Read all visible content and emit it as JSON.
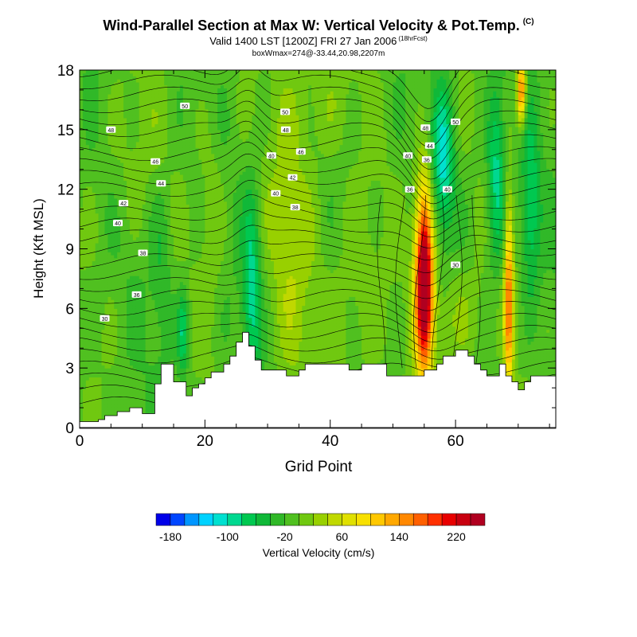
{
  "title": {
    "main": "Wind-Parallel Section at Max W: Vertical Velocity & Pot.Temp.",
    "copyright": "(C)",
    "valid": "Valid 1400 LST [1200Z] FRI 27 Jan 2006",
    "fcst": "(18hrFcst)",
    "box": "boxWmax=274@-33.44,20.98,2207m"
  },
  "chart_data": {
    "type": "heatmap",
    "title": "Wind-Parallel Section at Max W: Vertical Velocity & Pot.Temp.",
    "xlabel": "Grid Point",
    "ylabel": "Height (Kft MSL)",
    "xlim": [
      0,
      76
    ],
    "ylim": [
      0,
      18
    ],
    "xticks": [
      0,
      20,
      40,
      60
    ],
    "yticks": [
      0,
      3,
      6,
      9,
      12,
      15,
      18
    ],
    "colorbar": {
      "label": "Vertical Velocity (cm/s)",
      "tick_labels": [
        "-180",
        "-100",
        "-20",
        "60",
        "140",
        "220"
      ],
      "tick_values": [
        -180,
        -100,
        -20,
        60,
        140,
        220
      ],
      "bins": [
        -200,
        -180,
        -160,
        -140,
        -120,
        -100,
        -80,
        -60,
        -40,
        -20,
        0,
        20,
        40,
        60,
        80,
        100,
        120,
        140,
        160,
        180,
        200,
        220,
        240,
        260
      ],
      "colors": [
        "#0000e8",
        "#0046ff",
        "#0096ff",
        "#00d2ff",
        "#00e0d0",
        "#00d890",
        "#00c850",
        "#10b838",
        "#30b828",
        "#50c020",
        "#70c810",
        "#98d000",
        "#c0d800",
        "#e0e000",
        "#f8e000",
        "#ffc800",
        "#ffa800",
        "#ff8800",
        "#ff6000",
        "#ff3000",
        "#e80000",
        "#c80010",
        "#b00020"
      ]
    },
    "terrain": [
      [
        0,
        0.3
      ],
      [
        3,
        0.3
      ],
      [
        3,
        0.4
      ],
      [
        4,
        0.4
      ],
      [
        4,
        0.6
      ],
      [
        6,
        0.6
      ],
      [
        6,
        0.8
      ],
      [
        8,
        0.8
      ],
      [
        8,
        1.0
      ],
      [
        10,
        1.0
      ],
      [
        10,
        0.7
      ],
      [
        12,
        0.7
      ],
      [
        12,
        2.2
      ],
      [
        13,
        2.2
      ],
      [
        13,
        3.2
      ],
      [
        15,
        3.2
      ],
      [
        15,
        2.3
      ],
      [
        17,
        2.3
      ],
      [
        17,
        1.6
      ],
      [
        18,
        1.6
      ],
      [
        18,
        2.0
      ],
      [
        19,
        2.0
      ],
      [
        19,
        2.2
      ],
      [
        20,
        2.2
      ],
      [
        20,
        2.5
      ],
      [
        21,
        2.5
      ],
      [
        21,
        2.8
      ],
      [
        23,
        2.8
      ],
      [
        23,
        3.2
      ],
      [
        24,
        3.2
      ],
      [
        24,
        3.6
      ],
      [
        25,
        3.6
      ],
      [
        25,
        4.3
      ],
      [
        26,
        4.3
      ],
      [
        26,
        4.8
      ],
      [
        27,
        4.8
      ],
      [
        27,
        4.1
      ],
      [
        28,
        4.1
      ],
      [
        28,
        3.4
      ],
      [
        29,
        3.4
      ],
      [
        29,
        2.9
      ],
      [
        33,
        2.9
      ],
      [
        33,
        2.6
      ],
      [
        35,
        2.6
      ],
      [
        35,
        2.9
      ],
      [
        36,
        2.9
      ],
      [
        36,
        3.2
      ],
      [
        43,
        3.2
      ],
      [
        43,
        2.9
      ],
      [
        45,
        2.9
      ],
      [
        45,
        3.2
      ],
      [
        49,
        3.2
      ],
      [
        49,
        2.6
      ],
      [
        55,
        2.6
      ],
      [
        55,
        2.9
      ],
      [
        57,
        2.9
      ],
      [
        57,
        3.2
      ],
      [
        58,
        3.2
      ],
      [
        58,
        3.6
      ],
      [
        60,
        3.6
      ],
      [
        60,
        3.9
      ],
      [
        62,
        3.9
      ],
      [
        62,
        3.6
      ],
      [
        63,
        3.6
      ],
      [
        63,
        3.2
      ],
      [
        64,
        3.2
      ],
      [
        64,
        2.9
      ],
      [
        65,
        2.9
      ],
      [
        65,
        2.6
      ],
      [
        67,
        2.6
      ],
      [
        67,
        3.2
      ],
      [
        68,
        3.2
      ],
      [
        68,
        2.6
      ],
      [
        69,
        2.6
      ],
      [
        69,
        2.3
      ],
      [
        70,
        2.3
      ],
      [
        70,
        1.9
      ],
      [
        71,
        1.9
      ],
      [
        71,
        2.3
      ],
      [
        72,
        2.3
      ],
      [
        72,
        2.6
      ],
      [
        76,
        2.6
      ],
      [
        76,
        0
      ]
    ],
    "w_features": [
      {
        "x": 55,
        "y": 7.5,
        "sx": 1.0,
        "sy": 3.3,
        "w": 300
      },
      {
        "x": 68.5,
        "y": 6.5,
        "sx": 0.5,
        "sy": 3.5,
        "w": 160
      },
      {
        "x": 70.5,
        "y": 17.0,
        "sx": 0.5,
        "sy": 1.2,
        "w": 180
      },
      {
        "x": 58,
        "y": 13.5,
        "sx": 1.2,
        "sy": 2.5,
        "w": -95
      },
      {
        "x": 66.5,
        "y": 12.5,
        "sx": 1.0,
        "sy": 3.2,
        "w": -85
      },
      {
        "x": 72,
        "y": 11.0,
        "sx": 1.0,
        "sy": 3.0,
        "w": -70
      },
      {
        "x": 27.5,
        "y": 7.0,
        "sx": 1.0,
        "sy": 3.5,
        "w": -80
      },
      {
        "x": 16.5,
        "y": 4.8,
        "sx": 0.6,
        "sy": 1.5,
        "w": -70
      },
      {
        "x": 34,
        "y": 9.0,
        "sx": 3.0,
        "sy": 5.0,
        "w": 40
      },
      {
        "x": 44,
        "y": 6.5,
        "sx": 3.0,
        "sy": 4.0,
        "w": 30
      },
      {
        "x": 60,
        "y": 5.5,
        "sx": 4.0,
        "sy": 2.0,
        "w": 35
      },
      {
        "x": 21,
        "y": 11.0,
        "sx": 1.5,
        "sy": 4.0,
        "w": 28
      },
      {
        "x": 8,
        "y": 14.0,
        "sx": 3.0,
        "sy": 3.0,
        "w": 20
      },
      {
        "x": 38,
        "y": 16.5,
        "sx": 4.0,
        "sy": 2.0,
        "w": 25
      },
      {
        "x": 13,
        "y": 8.0,
        "sx": 1.2,
        "sy": 3.0,
        "w": -30
      }
    ],
    "contour_labels": [
      {
        "x": 16.8,
        "y": 16.2,
        "text": "50"
      },
      {
        "x": 5.0,
        "y": 15.0,
        "text": "48"
      },
      {
        "x": 32.8,
        "y": 15.9,
        "text": "50"
      },
      {
        "x": 32.9,
        "y": 15.0,
        "text": "48"
      },
      {
        "x": 30.6,
        "y": 13.7,
        "text": "40"
      },
      {
        "x": 35.3,
        "y": 13.9,
        "text": "46"
      },
      {
        "x": 12.1,
        "y": 13.4,
        "text": "46"
      },
      {
        "x": 13.0,
        "y": 12.3,
        "text": "44"
      },
      {
        "x": 34.0,
        "y": 12.6,
        "text": "42"
      },
      {
        "x": 31.3,
        "y": 11.8,
        "text": "40"
      },
      {
        "x": 34.4,
        "y": 11.1,
        "text": "38"
      },
      {
        "x": 7.0,
        "y": 11.3,
        "text": "42"
      },
      {
        "x": 6.1,
        "y": 10.3,
        "text": "40"
      },
      {
        "x": 10.1,
        "y": 8.8,
        "text": "38"
      },
      {
        "x": 9.1,
        "y": 6.7,
        "text": "36"
      },
      {
        "x": 4.0,
        "y": 5.5,
        "text": "30"
      },
      {
        "x": 55.2,
        "y": 15.1,
        "text": "48"
      },
      {
        "x": 60.0,
        "y": 15.4,
        "text": "50"
      },
      {
        "x": 55.9,
        "y": 14.2,
        "text": "44"
      },
      {
        "x": 52.4,
        "y": 13.7,
        "text": "40"
      },
      {
        "x": 55.4,
        "y": 13.5,
        "text": "36"
      },
      {
        "x": 52.7,
        "y": 12.0,
        "text": "36"
      },
      {
        "x": 58.7,
        "y": 12.0,
        "text": "40"
      },
      {
        "x": 60.0,
        "y": 8.2,
        "text": "30"
      }
    ]
  }
}
